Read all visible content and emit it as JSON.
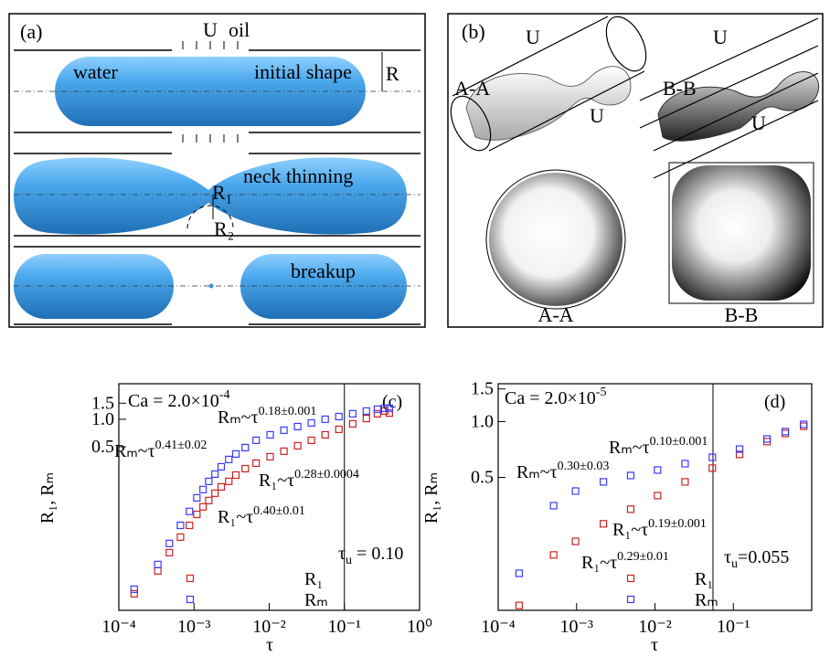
{
  "diagrams": {
    "a": {
      "label": "(a)",
      "texts": [
        "U",
        "oil",
        "water",
        "initial shape",
        "R",
        "neck thinning",
        "R₁",
        "R₂",
        "breakup"
      ]
    },
    "b": {
      "label": "(b)",
      "texts": [
        "U",
        "A-A",
        "U",
        "B-B",
        "U",
        "U",
        "A-A",
        "B-B"
      ]
    }
  },
  "chart_data": [
    {
      "type": "scatter",
      "panel_label": "(c)",
      "xlabel": "τ",
      "ylabel": "R₁, Rₘ",
      "xscale": "log",
      "yscale": "log",
      "xlim": [
        0.0001,
        1
      ],
      "ylim": [
        0.0081,
        2.45
      ],
      "xticks": [
        {
          "value": 0.0001,
          "label": "10⁻⁴"
        },
        {
          "value": 0.001,
          "label": "10⁻³"
        },
        {
          "value": 0.01,
          "label": "10⁻²"
        },
        {
          "value": 0.1,
          "label": "10⁻¹"
        },
        {
          "value": 1,
          "label": "10⁰"
        }
      ],
      "yticks": [
        0.5,
        {
          "value": 1,
          "label": "1.0"
        },
        1.5
      ],
      "legend": "lower right",
      "vline_x": 0.1,
      "series": [
        {
          "name": "R₁",
          "color": "#cc2222",
          "marker": "square",
          "x": [
            0.00016,
            0.00033,
            0.00047,
            0.00066,
            0.00087,
            0.00109,
            0.00132,
            0.00157,
            0.0019,
            0.0023,
            0.0029,
            0.0036,
            0.0048,
            0.0067,
            0.0103,
            0.0157,
            0.0239,
            0.0364,
            0.0555,
            0.0845,
            0.129,
            0.196,
            0.275,
            0.344,
            0.396
          ],
          "values": [
            0.0123,
            0.0219,
            0.0347,
            0.0513,
            0.069,
            0.091,
            0.11,
            0.129,
            0.155,
            0.182,
            0.209,
            0.245,
            0.288,
            0.331,
            0.389,
            0.447,
            0.513,
            0.589,
            0.676,
            0.776,
            0.891,
            1.02,
            1.15,
            1.23,
            1.17
          ]
        },
        {
          "name": "Rₘ",
          "color": "#3a3aff",
          "marker": "square",
          "x": [
            0.00016,
            0.00033,
            0.00047,
            0.00066,
            0.00087,
            0.00109,
            0.00132,
            0.00157,
            0.0019,
            0.0023,
            0.0029,
            0.0036,
            0.0048,
            0.0067,
            0.0103,
            0.0157,
            0.0239,
            0.0364,
            0.0555,
            0.0845,
            0.129,
            0.196,
            0.275,
            0.344,
            0.396
          ],
          "values": [
            0.0138,
            0.0257,
            0.0437,
            0.069,
            0.098,
            0.138,
            0.17,
            0.209,
            0.251,
            0.302,
            0.363,
            0.417,
            0.49,
            0.589,
            0.676,
            0.759,
            0.832,
            0.912,
            1.0,
            1.07,
            1.15,
            1.23,
            1.29,
            1.32,
            1.32
          ]
        }
      ],
      "annotations": [
        {
          "segments": [
            {
              "text": "Ca = 2.0×10"
            },
            {
              "text": "-4",
              "sup": true
            }
          ]
        },
        {
          "segments": [
            {
              "text": "Rₘ~τ"
            },
            {
              "text": "0.18±0.001",
              "sup": true
            }
          ]
        },
        {
          "segments": [
            {
              "text": "Rₘ~τ"
            },
            {
              "text": "0.41±0.02",
              "sup": true
            }
          ]
        },
        {
          "segments": [
            {
              "text": "R₁~τ"
            },
            {
              "text": "0.28±0.0004",
              "sup": true
            }
          ]
        },
        {
          "segments": [
            {
              "text": "R₁~τ"
            },
            {
              "text": "0.40±0.01",
              "sup": true
            }
          ]
        },
        {
          "segments": [
            {
              "text": "τ"
            },
            {
              "text": "u",
              "sub": true
            },
            {
              "text": " = 0.10"
            }
          ]
        }
      ]
    },
    {
      "type": "scatter",
      "panel_label": "(d)",
      "xlabel": "τ",
      "ylabel": "R₁, Rₘ",
      "xscale": "log",
      "yscale": "log",
      "xlim": [
        0.0001,
        1
      ],
      "ylim": [
        0.096,
        1.6
      ],
      "xticks": [
        {
          "value": 0.0001,
          "label": "10⁻⁴"
        },
        {
          "value": 0.001,
          "label": "10⁻³"
        },
        {
          "value": 0.01,
          "label": "10⁻²"
        },
        {
          "value": 0.1,
          "label": "10⁻¹"
        }
      ],
      "yticks": [
        0.5,
        {
          "value": 1,
          "label": "1.0"
        },
        1.5
      ],
      "legend": "lower right",
      "vline_x": 0.055,
      "series": [
        {
          "name": "R₁",
          "color": "#cc2222",
          "marker": "square",
          "x": [
            0.000185,
            0.00051,
            0.00097,
            0.0022,
            0.0049,
            0.0108,
            0.0242,
            0.054,
            0.12,
            0.269,
            0.46,
            0.79
          ],
          "values": [
            0.102,
            0.191,
            0.226,
            0.281,
            0.337,
            0.399,
            0.473,
            0.561,
            0.665,
            0.78,
            0.863,
            0.944
          ]
        },
        {
          "name": "Rₘ",
          "color": "#3a3aff",
          "marker": "square",
          "x": [
            0.000185,
            0.00051,
            0.00097,
            0.0022,
            0.0049,
            0.0108,
            0.0242,
            0.054,
            0.12,
            0.269,
            0.46,
            0.79
          ],
          "values": [
            0.152,
            0.352,
            0.422,
            0.473,
            0.512,
            0.548,
            0.593,
            0.642,
            0.711,
            0.806,
            0.883,
            0.966
          ]
        }
      ],
      "annotations": [
        {
          "segments": [
            {
              "text": "Ca = 2.0×10"
            },
            {
              "text": "-5",
              "sup": true
            }
          ]
        },
        {
          "segments": [
            {
              "text": "Rₘ~τ"
            },
            {
              "text": "0.10±0.001",
              "sup": true
            }
          ]
        },
        {
          "segments": [
            {
              "text": "Rₘ~τ"
            },
            {
              "text": "0.30±0.03",
              "sup": true
            }
          ]
        },
        {
          "segments": [
            {
              "text": "R₁~τ"
            },
            {
              "text": "0.19±0.001",
              "sup": true
            }
          ]
        },
        {
          "segments": [
            {
              "text": "R₁~τ"
            },
            {
              "text": "0.29±0.01",
              "sup": true
            }
          ]
        },
        {
          "segments": [
            {
              "text": "τ"
            },
            {
              "text": "u",
              "sub": true
            },
            {
              "text": "=0.055"
            }
          ]
        }
      ]
    }
  ]
}
